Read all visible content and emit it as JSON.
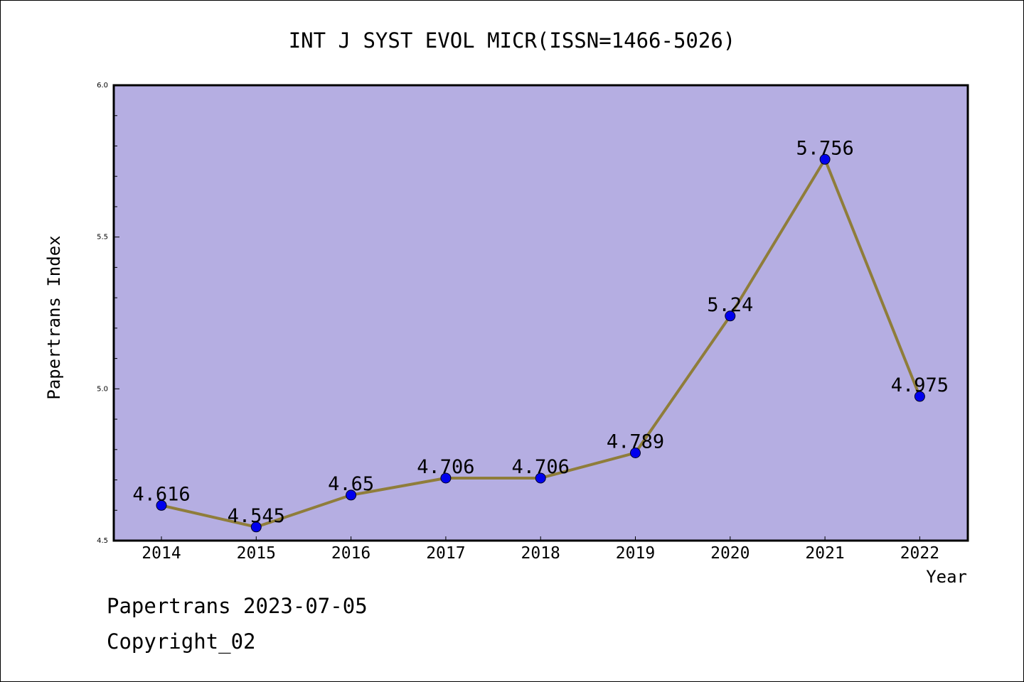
{
  "chart_data": {
    "type": "line",
    "title": "INT J SYST EVOL MICR(ISSN=1466-5026)",
    "xlabel": "Year",
    "ylabel": "Papertrans Index",
    "categories": [
      "2014",
      "2015",
      "2016",
      "2017",
      "2018",
      "2019",
      "2020",
      "2021",
      "2022"
    ],
    "series": [
      {
        "values": [
          4.616,
          4.545,
          4.65,
          4.706,
          4.706,
          4.789,
          5.24,
          5.756,
          4.975
        ],
        "labels": [
          "4.616",
          "4.545",
          "4.65",
          "4.706",
          "4.706",
          "4.789",
          "5.24",
          "5.756",
          "4.975"
        ]
      }
    ],
    "ylim": [
      4.5,
      6.0
    ],
    "yticks": [
      4.5,
      5.0,
      5.5,
      6.0
    ],
    "ytick_labels": [
      "4.5",
      "5.0",
      "5.5",
      "6.0"
    ],
    "grid": false,
    "colors": {
      "plot_background": "#b5aee2",
      "line": "#8f7d3a",
      "marker": "#0000ee"
    }
  },
  "footer": {
    "line1": "Papertrans 2023-07-05",
    "line2": "Copyright_02"
  }
}
